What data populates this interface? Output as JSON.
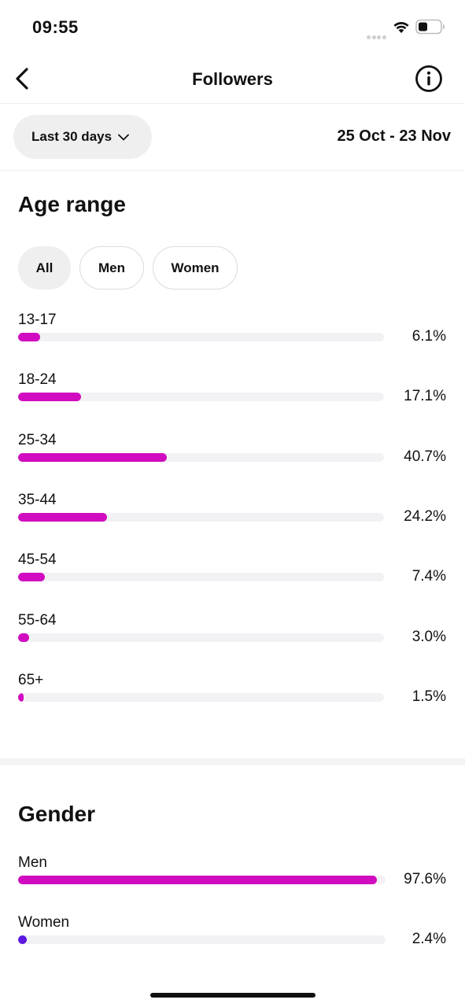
{
  "status_bar": {
    "time": "09:55"
  },
  "nav": {
    "title": "Followers"
  },
  "filter": {
    "range_label": "Last 30 days",
    "date_range": "25 Oct - 23 Nov"
  },
  "age_range": {
    "title": "Age range",
    "tabs": [
      {
        "label": "All",
        "active": true
      },
      {
        "label": "Men",
        "active": false
      },
      {
        "label": "Women",
        "active": false
      }
    ],
    "rows": [
      {
        "label": "13-17",
        "pct_text": "6.1%",
        "value": 6.1
      },
      {
        "label": "18-24",
        "pct_text": "17.1%",
        "value": 17.1
      },
      {
        "label": "25-34",
        "pct_text": "40.7%",
        "value": 40.7
      },
      {
        "label": "35-44",
        "pct_text": "24.2%",
        "value": 24.2
      },
      {
        "label": "45-54",
        "pct_text": "7.4%",
        "value": 7.4
      },
      {
        "label": "55-64",
        "pct_text": "3.0%",
        "value": 3.0
      },
      {
        "label": "65+",
        "pct_text": "1.5%",
        "value": 1.5
      }
    ]
  },
  "gender": {
    "title": "Gender",
    "rows": [
      {
        "label": "Men",
        "pct_text": "97.6%",
        "value": 97.6
      },
      {
        "label": "Women",
        "pct_text": "2.4%",
        "value": 2.4
      }
    ]
  },
  "colors": {
    "bar_magenta": "#d10cc0",
    "bar_purple": "#5b19e0",
    "track": "#f2f2f4",
    "chip_active_bg": "#efefef"
  },
  "icons": {
    "back": "back-arrow-icon",
    "info": "info-icon",
    "chevron": "chevron-down-icon",
    "wifi": "wifi-icon",
    "battery": "battery-icon"
  }
}
